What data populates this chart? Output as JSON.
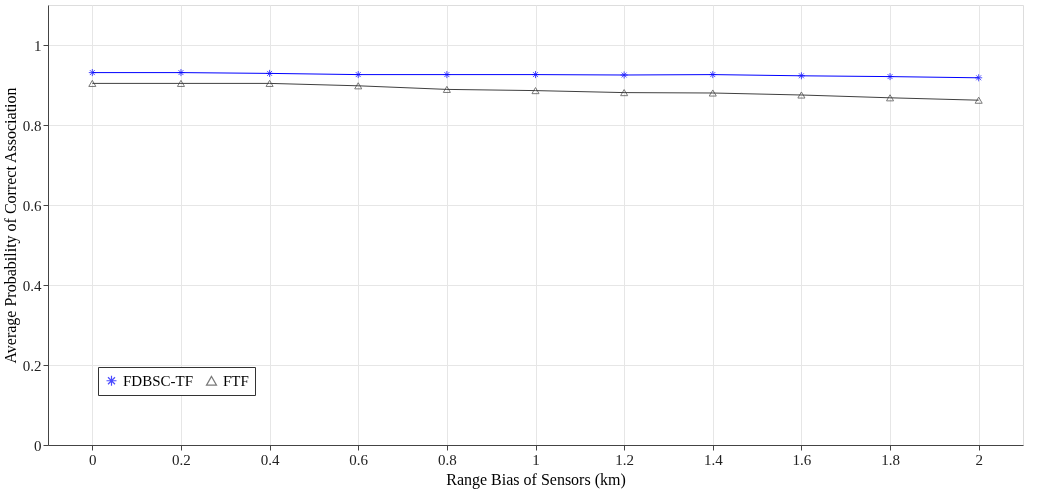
{
  "chart_data": {
    "type": "line",
    "xlabel": "Range Bias of Sensors (km)",
    "ylabel": "Average Probability of Correct Association",
    "x": [
      0,
      0.2,
      0.4,
      0.6,
      0.8,
      1,
      1.2,
      1.4,
      1.6,
      1.8,
      2
    ],
    "series": [
      {
        "name": "FDBSC-TF",
        "color": "#0000ff",
        "marker": "cross",
        "values": [
          0.931,
          0.931,
          0.929,
          0.926,
          0.926,
          0.926,
          0.925,
          0.926,
          0.923,
          0.921,
          0.918
        ]
      },
      {
        "name": "FTF",
        "color": "#404040",
        "marker": "triangle",
        "values": [
          0.904,
          0.904,
          0.904,
          0.898,
          0.889,
          0.886,
          0.881,
          0.88,
          0.875,
          0.868,
          0.862
        ]
      }
    ],
    "xlim": [
      -0.1,
      2.1
    ],
    "xticks": [
      0,
      0.2,
      0.4,
      0.6,
      0.8,
      1,
      1.2,
      1.4,
      1.6,
      1.8,
      2
    ],
    "ylim": [
      0,
      1.1
    ],
    "yticks": [
      0,
      0.2,
      0.4,
      0.6,
      0.8,
      1
    ],
    "grid": true,
    "legend": "bottom left",
    "line_style": "solid"
  }
}
